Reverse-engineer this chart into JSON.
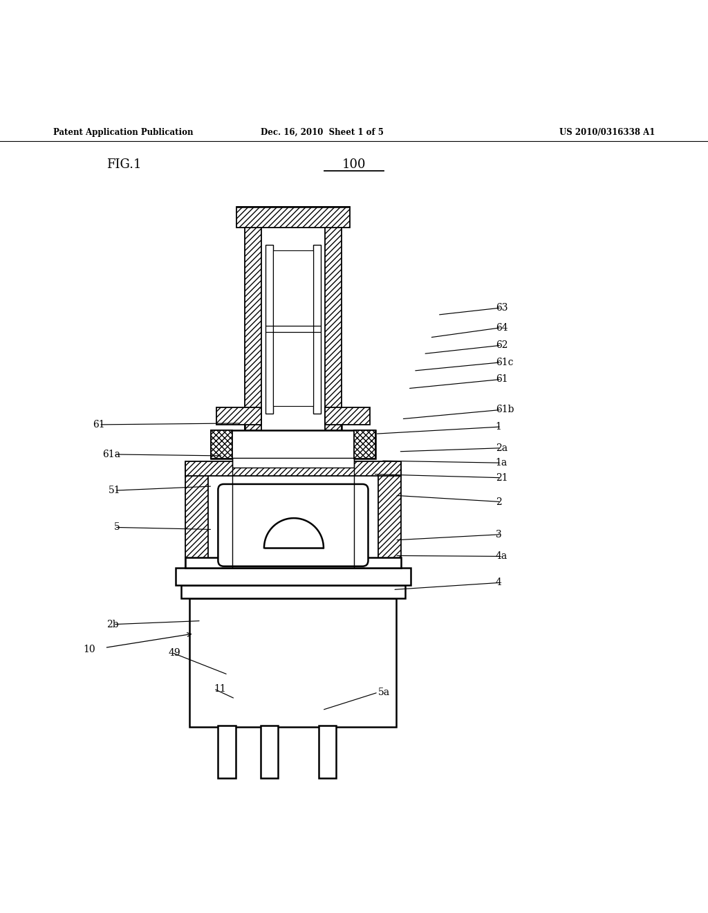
{
  "background": "#ffffff",
  "line_color": "#000000",
  "header_left": "Patent Application Publication",
  "header_mid": "Dec. 16, 2010  Sheet 1 of 5",
  "header_right": "US 2010/0316338 A1",
  "fig_label": "FIG.1",
  "ref_number": "100"
}
